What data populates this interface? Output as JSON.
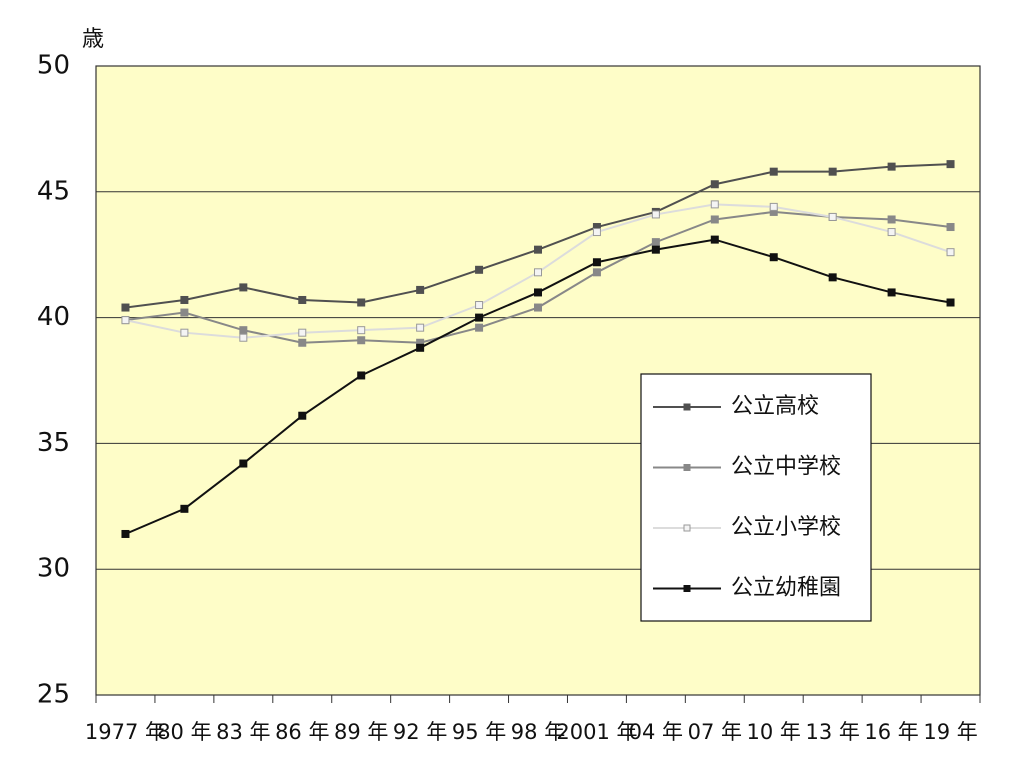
{
  "chart_data": {
    "type": "line",
    "y_unit": "歳",
    "categories": [
      "1977 年",
      "80 年",
      "83 年",
      "86 年",
      "89 年",
      "92 年",
      "95 年",
      "98 年",
      "2001 年",
      "04 年",
      "07 年",
      "10 年",
      "13 年",
      "16 年",
      "19 年"
    ],
    "series": [
      {
        "name": "公立高校",
        "color": "#505050",
        "marker_fill": "#505050",
        "values": [
          40.4,
          40.7,
          41.2,
          40.7,
          40.6,
          41.1,
          41.9,
          42.7,
          43.6,
          44.2,
          45.3,
          45.8,
          45.8,
          46.0,
          46.1
        ]
      },
      {
        "name": "公立中学校",
        "color": "#888888",
        "marker_fill": "#888888",
        "values": [
          39.9,
          40.2,
          39.5,
          39.0,
          39.1,
          39.0,
          39.6,
          40.4,
          41.8,
          43.0,
          43.9,
          44.2,
          44.0,
          43.9,
          43.6
        ]
      },
      {
        "name": "公立小学校",
        "color": "#dcdcdc",
        "marker_fill": "#f4f4f4",
        "values": [
          39.9,
          39.4,
          39.2,
          39.4,
          39.5,
          39.6,
          40.5,
          41.8,
          43.4,
          44.1,
          44.5,
          44.4,
          44.0,
          43.4,
          42.6
        ]
      },
      {
        "name": "公立幼稚園",
        "color": "#111111",
        "marker_fill": "#111111",
        "values": [
          31.4,
          32.4,
          34.2,
          36.1,
          37.7,
          38.8,
          40.0,
          41.0,
          42.2,
          42.7,
          43.1,
          42.4,
          41.6,
          41.0,
          40.6
        ]
      }
    ],
    "ylim": [
      25,
      50
    ],
    "yticks": [
      25,
      30,
      35,
      40,
      45,
      50
    ],
    "grid": true,
    "background": "#fefdc8"
  }
}
